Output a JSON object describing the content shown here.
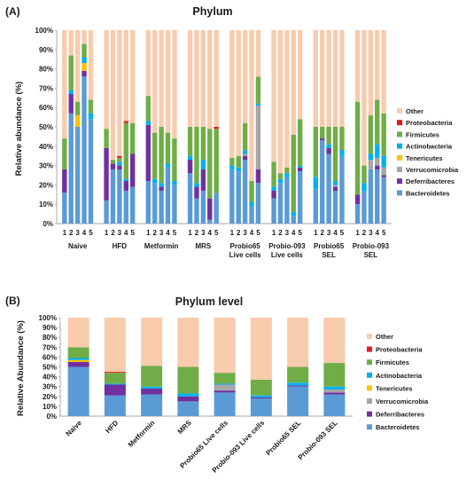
{
  "chart_data": [
    {
      "type": "bar",
      "stacked": true,
      "panel_label": "(A)",
      "title": "Phylum",
      "ylabel": "Relative abundance (%)",
      "ylim": [
        0,
        100
      ],
      "yticks": [
        "0%",
        "10%",
        "20%",
        "30%",
        "40%",
        "50%",
        "60%",
        "70%",
        "80%",
        "90%",
        "100%"
      ],
      "legend_position": "right",
      "phyla_legend_order": [
        "Other",
        "Proteobacteria",
        "Firmicutes",
        "Actinobacteria",
        "Tenericutes",
        "Verrucomicrobia",
        "Deferribacteres",
        "Bacteroidetes"
      ],
      "stack_order": [
        "Bacteroidetes",
        "Deferribacteres",
        "Verrucomicrobia",
        "Tenericutes",
        "Actinobacteria",
        "Firmicutes",
        "Proteobacteria",
        "Other"
      ],
      "colors": {
        "Bacteroidetes": "#5b9bd5",
        "Deferribacteres": "#7030a0",
        "Verrucomicrobia": "#a6a6a6",
        "Tenericutes": "#ffc000",
        "Actinobacteria": "#00b0f0",
        "Firmicutes": "#70ad47",
        "Proteobacteria": "#e31a1c",
        "Other": "#f8cbad"
      },
      "groups": [
        {
          "label": [
            "Naive"
          ],
          "samples": [
            {
              "index": "1",
              "values": [
                16,
                12,
                0,
                0,
                0,
                16,
                0,
                56
              ]
            },
            {
              "index": "2",
              "values": [
                57,
                10,
                0,
                0,
                2,
                18,
                0,
                13
              ]
            },
            {
              "index": "3",
              "values": [
                50,
                0,
                0,
                6,
                0,
                7,
                0,
                37
              ]
            },
            {
              "index": "4",
              "values": [
                76,
                3,
                0,
                4,
                3,
                7,
                0,
                7
              ]
            },
            {
              "index": "5",
              "values": [
                54,
                0,
                0,
                0,
                3,
                7,
                0,
                36
              ]
            }
          ]
        },
        {
          "label": [
            "HFD"
          ],
          "samples": [
            {
              "index": "1",
              "values": [
                12,
                27,
                0,
                0,
                0,
                10,
                0,
                51
              ]
            },
            {
              "index": "2",
              "values": [
                28,
                3,
                0,
                0,
                0,
                2,
                0,
                67
              ]
            },
            {
              "index": "3",
              "values": [
                28,
                2,
                0,
                0,
                2,
                2,
                1,
                65
              ]
            },
            {
              "index": "4",
              "values": [
                17,
                5,
                0,
                0,
                1,
                29,
                1,
                47
              ]
            },
            {
              "index": "5",
              "values": [
                19,
                17,
                0,
                0,
                0,
                16,
                0,
                48
              ]
            }
          ]
        },
        {
          "label": [
            "Metformin"
          ],
          "samples": [
            {
              "index": "1",
              "values": [
                22,
                29,
                0,
                0,
                2,
                13,
                0,
                34
              ]
            },
            {
              "index": "2",
              "values": [
                21,
                0,
                0,
                0,
                2,
                24,
                0,
                53
              ]
            },
            {
              "index": "3",
              "values": [
                17,
                2,
                0,
                0,
                2,
                29,
                0,
                50
              ]
            },
            {
              "index": "4",
              "values": [
                29,
                0,
                0,
                0,
                2,
                16,
                0,
                53
              ]
            },
            {
              "index": "5",
              "values": [
                20,
                0,
                0,
                0,
                2,
                22,
                0,
                56
              ]
            }
          ]
        },
        {
          "label": [
            "MRS"
          ],
          "samples": [
            {
              "index": "1",
              "values": [
                26,
                7,
                0,
                0,
                2,
                15,
                0,
                50
              ]
            },
            {
              "index": "2",
              "values": [
                13,
                6,
                0,
                0,
                2,
                29,
                0,
                50
              ]
            },
            {
              "index": "3",
              "values": [
                17,
                11,
                0,
                0,
                5,
                17,
                0,
                50
              ]
            },
            {
              "index": "4",
              "values": [
                2,
                11,
                0,
                0,
                0,
                36,
                0,
                51
              ]
            },
            {
              "index": "5",
              "values": [
                16,
                0,
                0,
                0,
                0,
                33,
                1,
                50
              ]
            }
          ]
        },
        {
          "label": [
            "Probio65",
            "Live cells"
          ],
          "samples": [
            {
              "index": "1",
              "values": [
                28,
                0,
                0,
                0,
                2,
                4,
                0,
                66
              ]
            },
            {
              "index": "2",
              "values": [
                27,
                0,
                0,
                0,
                2,
                6,
                0,
                65
              ]
            },
            {
              "index": "3",
              "values": [
                33,
                2,
                1,
                0,
                2,
                14,
                0,
                48
              ]
            },
            {
              "index": "4",
              "values": [
                9,
                0,
                0,
                0,
                2,
                11,
                0,
                78
              ]
            },
            {
              "index": "5",
              "values": [
                21,
                7,
                33,
                0,
                1,
                14,
                0,
                24
              ]
            }
          ]
        },
        {
          "label": [
            "Probio-093",
            "Live cells"
          ],
          "samples": [
            {
              "index": "1",
              "values": [
                13,
                4,
                0,
                0,
                2,
                13,
                0,
                68
              ]
            },
            {
              "index": "2",
              "values": [
                21,
                0,
                0,
                0,
                2,
                3,
                0,
                74
              ]
            },
            {
              "index": "3",
              "values": [
                24,
                0,
                0,
                0,
                2,
                3,
                0,
                71
              ]
            },
            {
              "index": "4",
              "values": [
                4,
                0,
                0,
                0,
                2,
                40,
                0,
                54
              ]
            },
            {
              "index": "5",
              "values": [
                27,
                2,
                0,
                0,
                1,
                24,
                0,
                46
              ]
            }
          ]
        },
        {
          "label": [
            "Probio65",
            "SEL"
          ],
          "samples": [
            {
              "index": "1",
              "values": [
                18,
                0,
                0,
                0,
                6,
                26,
                0,
                50
              ]
            },
            {
              "index": "2",
              "values": [
                43,
                1,
                0,
                0,
                0,
                6,
                0,
                50
              ]
            },
            {
              "index": "3",
              "values": [
                36,
                3,
                0,
                0,
                2,
                9,
                0,
                50
              ]
            },
            {
              "index": "4",
              "values": [
                17,
                2,
                1,
                0,
                2,
                28,
                0,
                50
              ]
            },
            {
              "index": "5",
              "values": [
                35,
                0,
                0,
                0,
                3,
                12,
                0,
                50
              ]
            }
          ]
        },
        {
          "label": [
            "Probio-093",
            "SEL"
          ],
          "samples": [
            {
              "index": "1",
              "values": [
                10,
                5,
                0,
                0,
                0,
                48,
                0,
                37
              ]
            },
            {
              "index": "2",
              "values": [
                17,
                0,
                0,
                0,
                4,
                9,
                0,
                70
              ]
            },
            {
              "index": "3",
              "values": [
                28,
                0,
                5,
                0,
                3,
                20,
                0,
                44
              ]
            },
            {
              "index": "4",
              "values": [
                28,
                2,
                4,
                0,
                7,
                23,
                0,
                36
              ]
            },
            {
              "index": "5",
              "values": [
                24,
                1,
                4,
                0,
                6,
                22,
                0,
                43
              ]
            }
          ]
        }
      ]
    },
    {
      "type": "bar",
      "stacked": true,
      "panel_label": "(B)",
      "title": "Phylum level",
      "ylabel": "Relative Abundance (%)",
      "ylim": [
        0,
        100
      ],
      "yticks": [
        "0%",
        "10%",
        "20%",
        "30%",
        "40%",
        "50%",
        "60%",
        "70%",
        "80%",
        "90%",
        "100%"
      ],
      "legend_position": "right",
      "phyla_legend_order": [
        "Other",
        "Proteobacteria",
        "Firmicutes",
        "Actinobacteria",
        "Tenericutes",
        "Verrucomicrobia",
        "Deferribacteres",
        "Bacteroidetes"
      ],
      "stack_order": [
        "Bacteroidetes",
        "Deferribacteres",
        "Verrucomicrobia",
        "Tenericutes",
        "Actinobacteria",
        "Firmicutes",
        "Proteobacteria",
        "Other"
      ],
      "categories": [
        "Naive",
        "HFD",
        "Metformin",
        "MRS",
        "Probio65 Live cells",
        "Probio-093 Live cells",
        "Probio65 SEL",
        "Probio-093 SEL"
      ],
      "series": [
        {
          "name": "Bacteroidetes",
          "values": [
            50,
            21,
            22,
            15,
            24,
            18,
            30,
            22
          ]
        },
        {
          "name": "Deferribacteres",
          "values": [
            5,
            11,
            6,
            5,
            2,
            1,
            1,
            2
          ]
        },
        {
          "name": "Verrucomicrobia",
          "values": [
            0,
            0,
            0,
            0,
            6,
            0,
            0,
            3
          ]
        },
        {
          "name": "Tenericutes",
          "values": [
            2,
            0,
            0,
            0,
            0,
            0,
            0,
            0
          ]
        },
        {
          "name": "Actinobacteria",
          "values": [
            2,
            1,
            2,
            3,
            1,
            2,
            3,
            3
          ]
        },
        {
          "name": "Firmicutes",
          "values": [
            11,
            11,
            21,
            27,
            11,
            16,
            16,
            24
          ]
        },
        {
          "name": "Proteobacteria",
          "values": [
            0,
            1,
            0,
            0,
            0,
            0,
            0,
            0
          ]
        },
        {
          "name": "Other",
          "values": [
            30,
            55,
            49,
            50,
            56,
            63,
            50,
            46
          ]
        }
      ]
    }
  ]
}
